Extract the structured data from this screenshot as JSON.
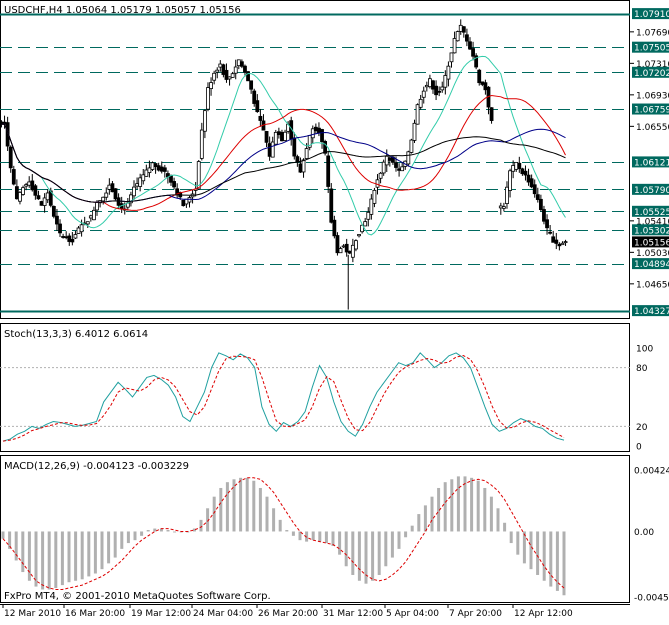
{
  "panels": {
    "price": {
      "header": "USDCHF,H4  1.05064 1.05179 1.05057 1.05156",
      "axis_ticks": [
        "1.07690",
        "1.07310",
        "1.06930",
        "1.06550",
        "1.05410",
        "1.05030",
        "1.04650"
      ],
      "levels": [
        {
          "value": "1.07910",
          "style": "box-solid"
        },
        {
          "value": "1.07505",
          "style": "box-dash"
        },
        {
          "value": "1.07202",
          "style": "box-dash"
        },
        {
          "value": "1.06759",
          "style": "box-dash"
        },
        {
          "value": "1.06121",
          "style": "box-dash"
        },
        {
          "value": "1.05790",
          "style": "box-dash"
        },
        {
          "value": "1.05525",
          "style": "box-dash"
        },
        {
          "value": "1.05302",
          "style": "box-dash"
        },
        {
          "value": "1.05156",
          "style": "current"
        },
        {
          "value": "1.04894",
          "style": "box-dash"
        },
        {
          "value": "1.04327",
          "style": "box-solid"
        }
      ]
    },
    "stoch": {
      "header": "Stoch(13,3,3) 6.4012 6.0614",
      "axis_ticks": [
        "100",
        "80",
        "20",
        "0"
      ]
    },
    "macd": {
      "header": "MACD(12,26,9) -0.004123 -0.003229",
      "axis_ticks": [
        "0.00424",
        "0.00",
        "-0.00452"
      ]
    }
  },
  "x_axis_labels": [
    "12 Mar 2010",
    "16 Mar 20:00",
    "19 Mar 12:00",
    "24 Mar 04:00",
    "26 Mar 20:00",
    "31 Mar 12:00",
    "5 Apr 04:00",
    "7 Apr 20:00",
    "12 Apr 12:00"
  ],
  "copyright": "FxPro MT4, © 2001-2010 MetaQuotes Software Corp.",
  "colors": {
    "background": "#ffffff",
    "candle": "#000000",
    "level_line": "#00695f",
    "ma_fast": "#33ccaa",
    "ma_mid": "#dd0000",
    "ma_slow": "#000088",
    "ma_long": "#000000",
    "stoch_main": "#20a0a0",
    "stoch_signal": "#dd0000",
    "macd_hist": "#b0b0b0",
    "macd_signal": "#dd0000"
  },
  "chart_data": [
    {
      "type": "candlestick",
      "title": "USDCHF,H4",
      "ohlc_last": {
        "open": 1.05064,
        "high": 1.05179,
        "low": 1.05057,
        "close": 1.05156
      },
      "ylim": [
        1.0425,
        1.0805
      ],
      "close_path": [
        1.066,
        1.0605,
        1.0565,
        1.058,
        1.059,
        1.0572,
        1.056,
        1.0575,
        1.0545,
        1.0525,
        1.052,
        1.0518,
        1.053,
        1.054,
        1.0545,
        1.0565,
        1.057,
        1.0585,
        1.057,
        1.0555,
        1.056,
        1.058,
        1.059,
        1.06,
        1.061,
        1.0605,
        1.06,
        1.059,
        1.0575,
        1.056,
        1.057,
        1.058,
        1.065,
        1.07,
        1.072,
        1.073,
        1.071,
        1.072,
        1.0735,
        1.072,
        1.07,
        1.067,
        1.065,
        1.062,
        1.065,
        1.064,
        1.066,
        1.062,
        1.06,
        1.063,
        1.0655,
        1.065,
        1.062,
        1.054,
        1.0505,
        1.051,
        1.05,
        1.052,
        1.0535,
        1.055,
        1.058,
        1.06,
        1.062,
        1.061,
        1.06,
        1.061,
        1.064,
        1.068,
        1.07,
        1.071,
        1.0695,
        1.07,
        1.073,
        1.076,
        1.0775,
        1.076,
        1.074,
        1.071,
        1.07,
        1.066,
        null,
        1.056,
        1.06,
        1.061,
        1.06,
        1.059,
        1.0575,
        1.0555,
        1.053,
        1.0518,
        1.0512,
        1.0516
      ],
      "levels": [
        1.0791,
        1.07505,
        1.07202,
        1.06759,
        1.06121,
        1.0579,
        1.05525,
        1.05302,
        1.04894,
        1.04327
      ]
    },
    {
      "type": "line",
      "title": "Stoch(13,3,3)",
      "ylim": [
        0,
        100
      ],
      "series": [
        {
          "name": "Stoch main",
          "last": 6.4012
        },
        {
          "name": "Stoch signal",
          "last": 6.0614
        }
      ],
      "levels": [
        80,
        20
      ],
      "main_path": [
        5,
        7,
        12,
        15,
        20,
        18,
        22,
        25,
        24,
        22,
        20,
        21,
        23,
        25,
        45,
        55,
        65,
        58,
        50,
        60,
        70,
        72,
        68,
        62,
        50,
        30,
        25,
        40,
        55,
        80,
        95,
        92,
        88,
        94,
        90,
        80,
        40,
        22,
        15,
        24,
        20,
        25,
        35,
        60,
        82,
        70,
        45,
        25,
        15,
        10,
        22,
        40,
        55,
        65,
        75,
        85,
        82,
        85,
        95,
        88,
        80,
        85,
        92,
        95,
        90,
        80,
        60,
        40,
        22,
        15,
        18,
        24,
        28,
        25,
        20,
        18,
        12,
        8,
        6
      ]
    },
    {
      "type": "bar",
      "title": "MACD(12,26,9)",
      "ylim": [
        -0.00452,
        0.00424
      ],
      "series": [
        {
          "name": "MACD",
          "last": -0.004123
        },
        {
          "name": "Signal",
          "last": -0.003229
        }
      ],
      "histogram": [
        -0.0005,
        -0.0012,
        -0.002,
        -0.0028,
        -0.0034,
        -0.0038,
        -0.004,
        -0.004,
        -0.0039,
        -0.0037,
        -0.0035,
        -0.0034,
        -0.0033,
        -0.0031,
        -0.0029,
        -0.0026,
        -0.0022,
        -0.0018,
        -0.0012,
        -0.0008,
        -0.0006,
        -0.0003,
        0.0001,
        0.0002,
        0.0002,
        0.0001,
        0.0,
        0.0,
        0.0,
        0.0002,
        0.0008,
        0.0016,
        0.0024,
        0.003,
        0.0034,
        0.0036,
        0.0037,
        0.0037,
        0.0035,
        0.003,
        0.0024,
        0.0016,
        0.0008,
        0.0001,
        -0.0003,
        -0.0006,
        -0.0007,
        -0.0006,
        -0.0007,
        -0.0008,
        -0.001,
        -0.0016,
        -0.0024,
        -0.003,
        -0.0034,
        -0.0036,
        -0.0034,
        -0.003,
        -0.0024,
        -0.0018,
        -0.0012,
        -0.0004,
        0.0004,
        0.0012,
        0.0018,
        0.0024,
        0.003,
        0.0034,
        0.0036,
        0.0038,
        0.0038,
        0.0037,
        0.0035,
        0.003,
        0.0024,
        0.0016,
        0.0006,
        -0.0008,
        -0.0016,
        -0.0022,
        -0.0026,
        -0.003,
        -0.0034,
        -0.0038,
        -0.0041,
        -0.0044
      ],
      "signal_path": [
        -0.0005,
        -0.001,
        -0.0016,
        -0.0022,
        -0.0028,
        -0.0034,
        -0.0037,
        -0.0039,
        -0.004,
        -0.004,
        -0.0039,
        -0.0038,
        -0.0037,
        -0.0035,
        -0.0033,
        -0.0031,
        -0.0028,
        -0.0024,
        -0.002,
        -0.0015,
        -0.001,
        -0.0006,
        -0.0003,
        0.0,
        0.0002,
        0.0002,
        0.0001,
        0.0,
        0.0,
        0.0001,
        0.0003,
        0.0007,
        0.0013,
        0.002,
        0.0026,
        0.0031,
        0.0035,
        0.0037,
        0.0037,
        0.0036,
        0.0032,
        0.0027,
        0.002,
        0.0013,
        0.0006,
        0.0,
        -0.0004,
        -0.0006,
        -0.0007,
        -0.0008,
        -0.0009,
        -0.0012,
        -0.0016,
        -0.0021,
        -0.0026,
        -0.003,
        -0.0033,
        -0.0034,
        -0.0033,
        -0.003,
        -0.0026,
        -0.0021,
        -0.0014,
        -0.0007,
        0.0,
        0.0008,
        0.0014,
        0.002,
        0.0025,
        0.003,
        0.0033,
        0.0035,
        0.0036,
        0.0035,
        0.0032,
        0.0028,
        0.0022,
        0.0014,
        0.0006,
        -0.0002,
        -0.001,
        -0.0017,
        -0.0024,
        -0.003,
        -0.0035,
        -0.0039
      ]
    }
  ]
}
